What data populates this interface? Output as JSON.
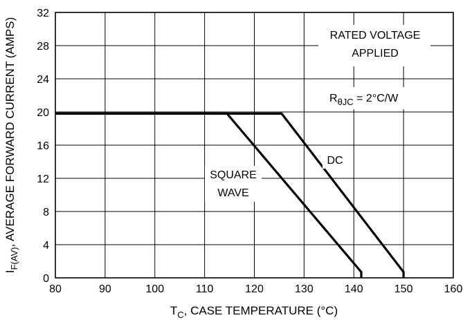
{
  "chart_data": {
    "type": "line",
    "title": "",
    "xlabel": {
      "main": "T",
      "sub": "C",
      "rest": ", CASE TEMPERATURE (°C)"
    },
    "ylabel": {
      "main": "I",
      "sub": "F(AV)",
      "rest": ", AVERAGE FORWARD CURRENT (AMPS)"
    },
    "xlim": [
      80,
      160
    ],
    "ylim": [
      0,
      32
    ],
    "xticks": [
      80,
      90,
      100,
      110,
      120,
      130,
      140,
      150,
      160
    ],
    "yticks": [
      0,
      4,
      8,
      12,
      16,
      20,
      24,
      28,
      32
    ],
    "grid": true,
    "series": [
      {
        "name": "DC",
        "x": [
          80,
          125.5,
          150,
          150
        ],
        "y": [
          19.8,
          19.8,
          0.7,
          0
        ]
      },
      {
        "name": "SQUARE WAVE",
        "x": [
          80,
          114.5,
          141.5,
          141.5
        ],
        "y": [
          19.8,
          19.8,
          0.7,
          0
        ]
      }
    ],
    "annotations": {
      "rated_voltage_line1": "RATED VOLTAGE",
      "rated_voltage_line2": "APPLIED",
      "rthjc_main": "R",
      "rthjc_sub": "θJC",
      "rthjc_rest": " = 2°C/W",
      "square_wave_line1": "SQUARE",
      "square_wave_line2": "WAVE",
      "dc": "DC"
    }
  }
}
